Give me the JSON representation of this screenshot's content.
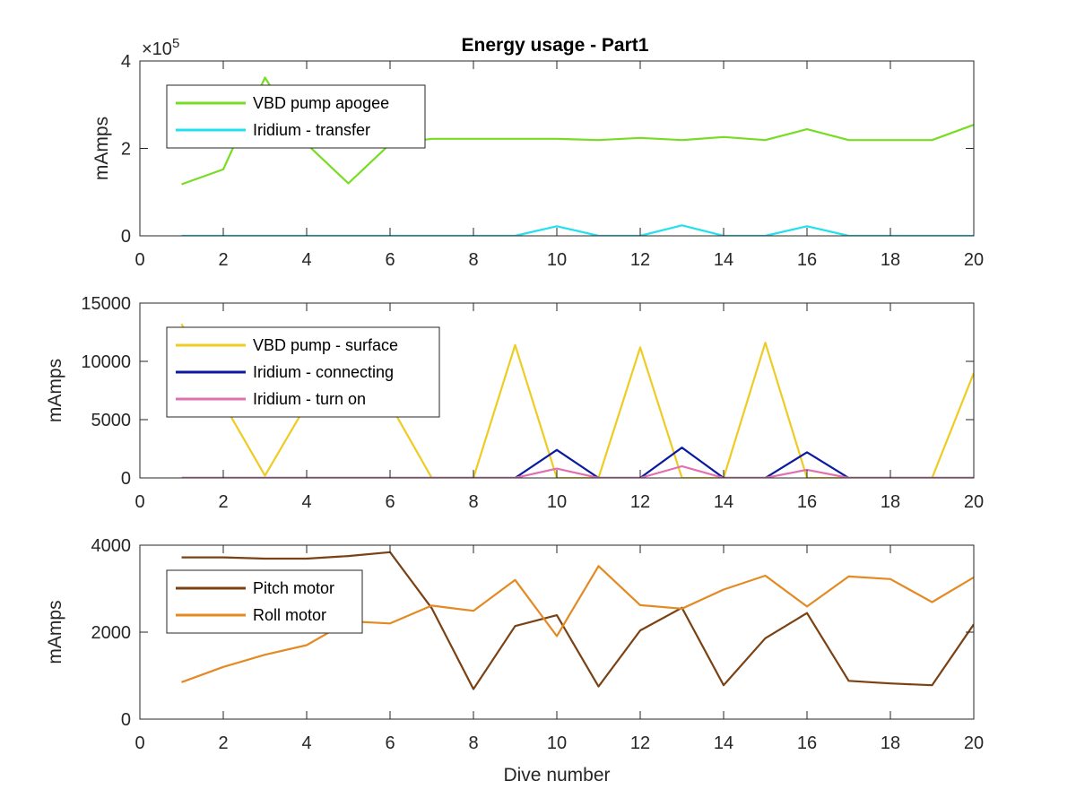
{
  "figure": {
    "title": "Energy usage - Part1",
    "xlabel": "Dive number",
    "top_exponent_base": "×10",
    "top_exponent_power": "5"
  },
  "chart_data": [
    {
      "type": "line",
      "title": "Energy usage - Part1",
      "xlabel": "",
      "ylabel": "mAmps",
      "xlim": [
        0,
        20
      ],
      "ylim": [
        0,
        400000
      ],
      "y_exponent": 5,
      "xticks": [
        0,
        2,
        4,
        6,
        8,
        10,
        12,
        14,
        16,
        18,
        20
      ],
      "yticks": [
        0,
        200000,
        400000
      ],
      "ytick_labels": [
        "0",
        "2",
        "4"
      ],
      "legend_position": "top-left",
      "x": [
        1,
        2,
        3,
        4,
        5,
        6,
        7,
        8,
        9,
        10,
        11,
        12,
        13,
        14,
        15,
        16,
        17,
        18,
        19,
        20
      ],
      "series": [
        {
          "name": "VBD pump apogee",
          "color": "#77dd22",
          "values": [
            118000,
            152000,
            362000,
            210000,
            120000,
            210000,
            222000,
            222000,
            222000,
            222000,
            219000,
            224000,
            219000,
            226000,
            219000,
            244000,
            219000,
            219000,
            219000,
            254000
          ]
        },
        {
          "name": "Iridium - transfer",
          "color": "#22e0ee",
          "values": [
            0,
            0,
            0,
            0,
            0,
            0,
            0,
            0,
            0,
            22000,
            0,
            0,
            24000,
            0,
            0,
            22000,
            0,
            0,
            0,
            0
          ]
        }
      ]
    },
    {
      "type": "line",
      "xlabel": "",
      "ylabel": "mAmps",
      "xlim": [
        0,
        20
      ],
      "ylim": [
        0,
        15000
      ],
      "xticks": [
        0,
        2,
        4,
        6,
        8,
        10,
        12,
        14,
        16,
        18,
        20
      ],
      "yticks": [
        0,
        5000,
        10000,
        15000
      ],
      "ytick_labels": [
        "0",
        "5000",
        "10000",
        "15000"
      ],
      "legend_position": "top-left",
      "x": [
        1,
        2,
        3,
        4,
        5,
        6,
        7,
        8,
        9,
        10,
        11,
        12,
        13,
        14,
        15,
        16,
        17,
        18,
        19,
        20
      ],
      "series": [
        {
          "name": "VBD pump - surface",
          "color": "#eecc22",
          "values": [
            13200,
            6400,
            200,
            6300,
            6300,
            6300,
            0,
            0,
            11400,
            0,
            0,
            11200,
            0,
            0,
            11600,
            0,
            0,
            0,
            0,
            9000
          ]
        },
        {
          "name": "Iridium - connecting",
          "color": "#0a1aa0",
          "values": [
            0,
            0,
            0,
            0,
            0,
            0,
            0,
            0,
            0,
            2400,
            0,
            0,
            2600,
            0,
            0,
            2200,
            0,
            0,
            0,
            0
          ]
        },
        {
          "name": "Iridium - turn on",
          "color": "#e070b0",
          "values": [
            0,
            0,
            0,
            0,
            0,
            0,
            0,
            0,
            0,
            800,
            0,
            0,
            1000,
            0,
            0,
            700,
            0,
            0,
            0,
            0
          ]
        }
      ]
    },
    {
      "type": "line",
      "xlabel": "Dive number",
      "ylabel": "mAmps",
      "xlim": [
        0,
        20
      ],
      "ylim": [
        0,
        4000
      ],
      "xticks": [
        0,
        2,
        4,
        6,
        8,
        10,
        12,
        14,
        16,
        18,
        20
      ],
      "yticks": [
        0,
        2000,
        4000
      ],
      "ytick_labels": [
        "0",
        "2000",
        "4000"
      ],
      "legend_position": "top-left",
      "x": [
        1,
        2,
        3,
        4,
        5,
        6,
        7,
        8,
        9,
        10,
        11,
        12,
        13,
        14,
        15,
        16,
        17,
        18,
        19,
        20
      ],
      "series": [
        {
          "name": "Pitch motor",
          "color": "#7a4214",
          "values": [
            3720,
            3720,
            3690,
            3690,
            3750,
            3840,
            2550,
            690,
            2140,
            2390,
            750,
            2040,
            2560,
            780,
            1860,
            2440,
            880,
            820,
            780,
            2180
          ]
        },
        {
          "name": "Roll motor",
          "color": "#e38a22",
          "values": [
            850,
            1200,
            1480,
            1700,
            2250,
            2200,
            2610,
            2490,
            3200,
            1910,
            3520,
            2620,
            2540,
            2980,
            3300,
            2590,
            3280,
            3220,
            2690,
            3260
          ]
        }
      ]
    }
  ]
}
